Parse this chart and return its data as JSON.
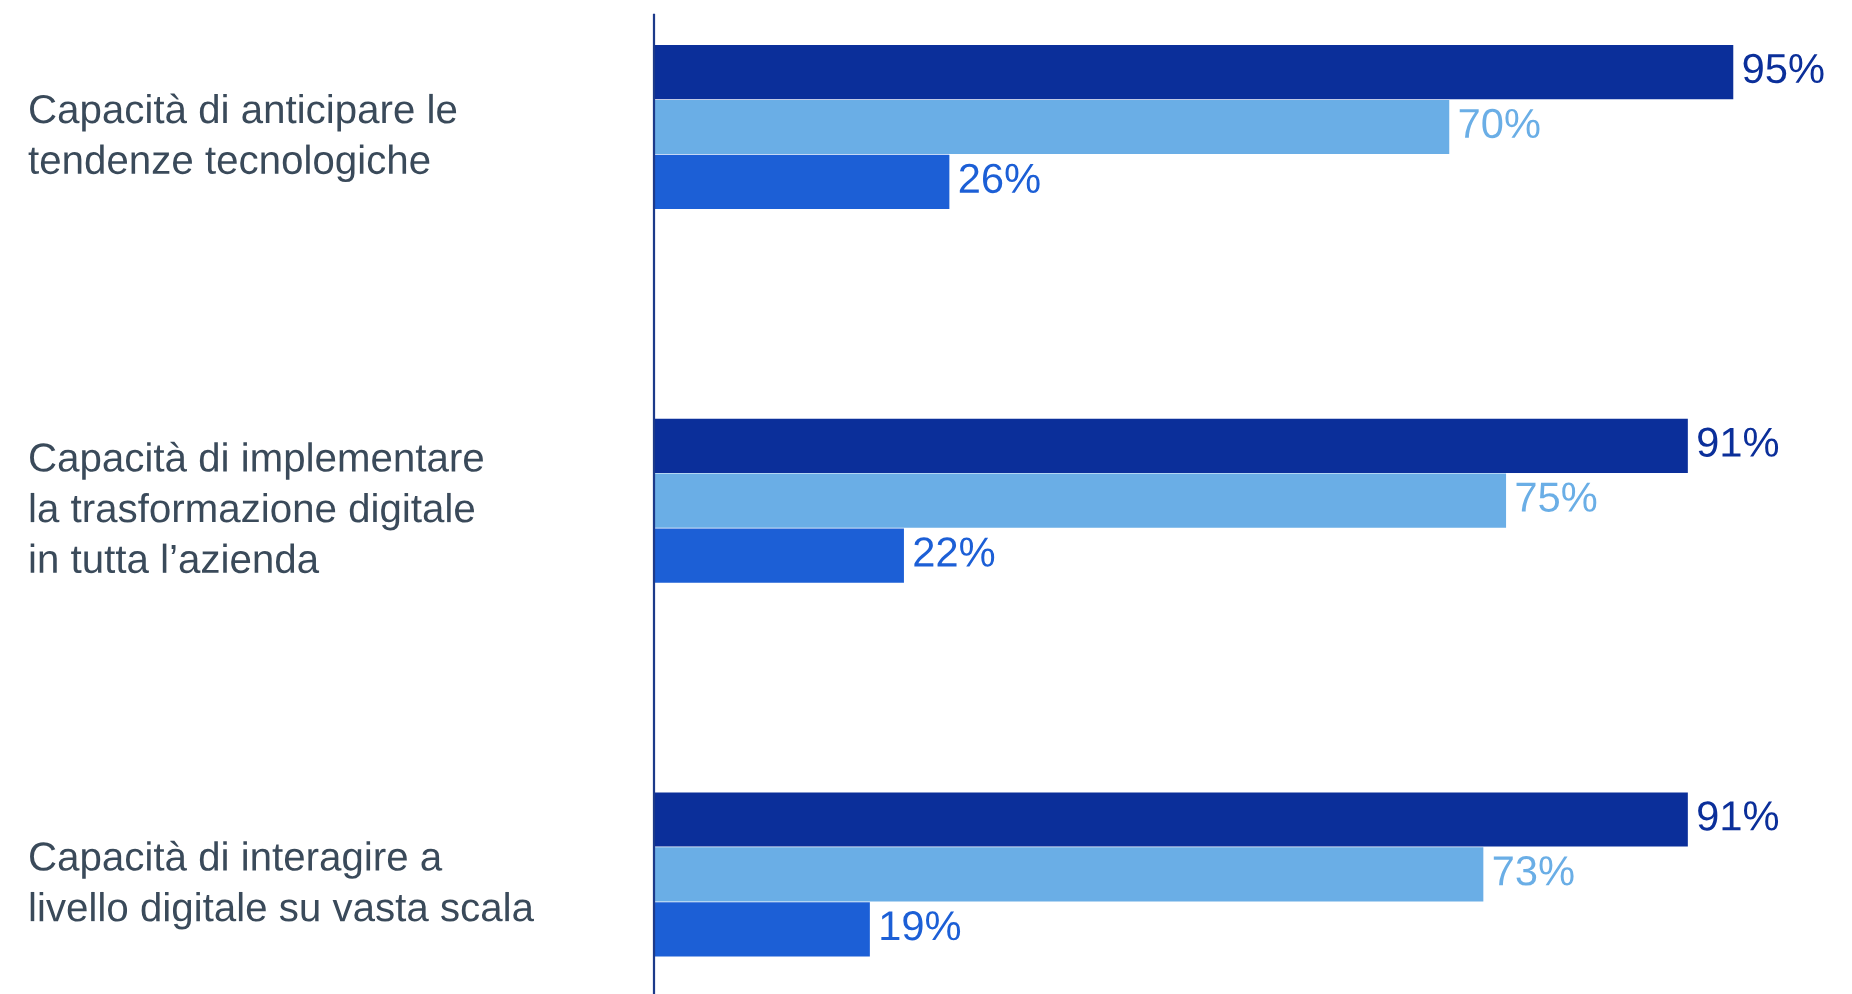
{
  "chart_data": {
    "type": "bar",
    "orientation": "horizontal",
    "categories": [
      "Capacità di anticipare le\ntendenze tecnologiche",
      "Capacità di implementare\nla trasformazione digitale\nin tutta l’azienda",
      "Capacità di interagire a\nlivello digitale su vasta scala"
    ],
    "series": [
      {
        "color": "#0b2f9a",
        "values": [
          95,
          91,
          91
        ],
        "value_labels": [
          "95%",
          "91%",
          "91%"
        ]
      },
      {
        "color": "#6aaee6",
        "values": [
          70,
          75,
          73
        ],
        "value_labels": [
          "70%",
          "75%",
          "73%"
        ]
      },
      {
        "color": "#1c5fd6",
        "values": [
          26,
          22,
          19
        ],
        "value_labels": [
          "26%",
          "22%",
          "19%"
        ]
      }
    ],
    "legend": false,
    "grid": false
  }
}
